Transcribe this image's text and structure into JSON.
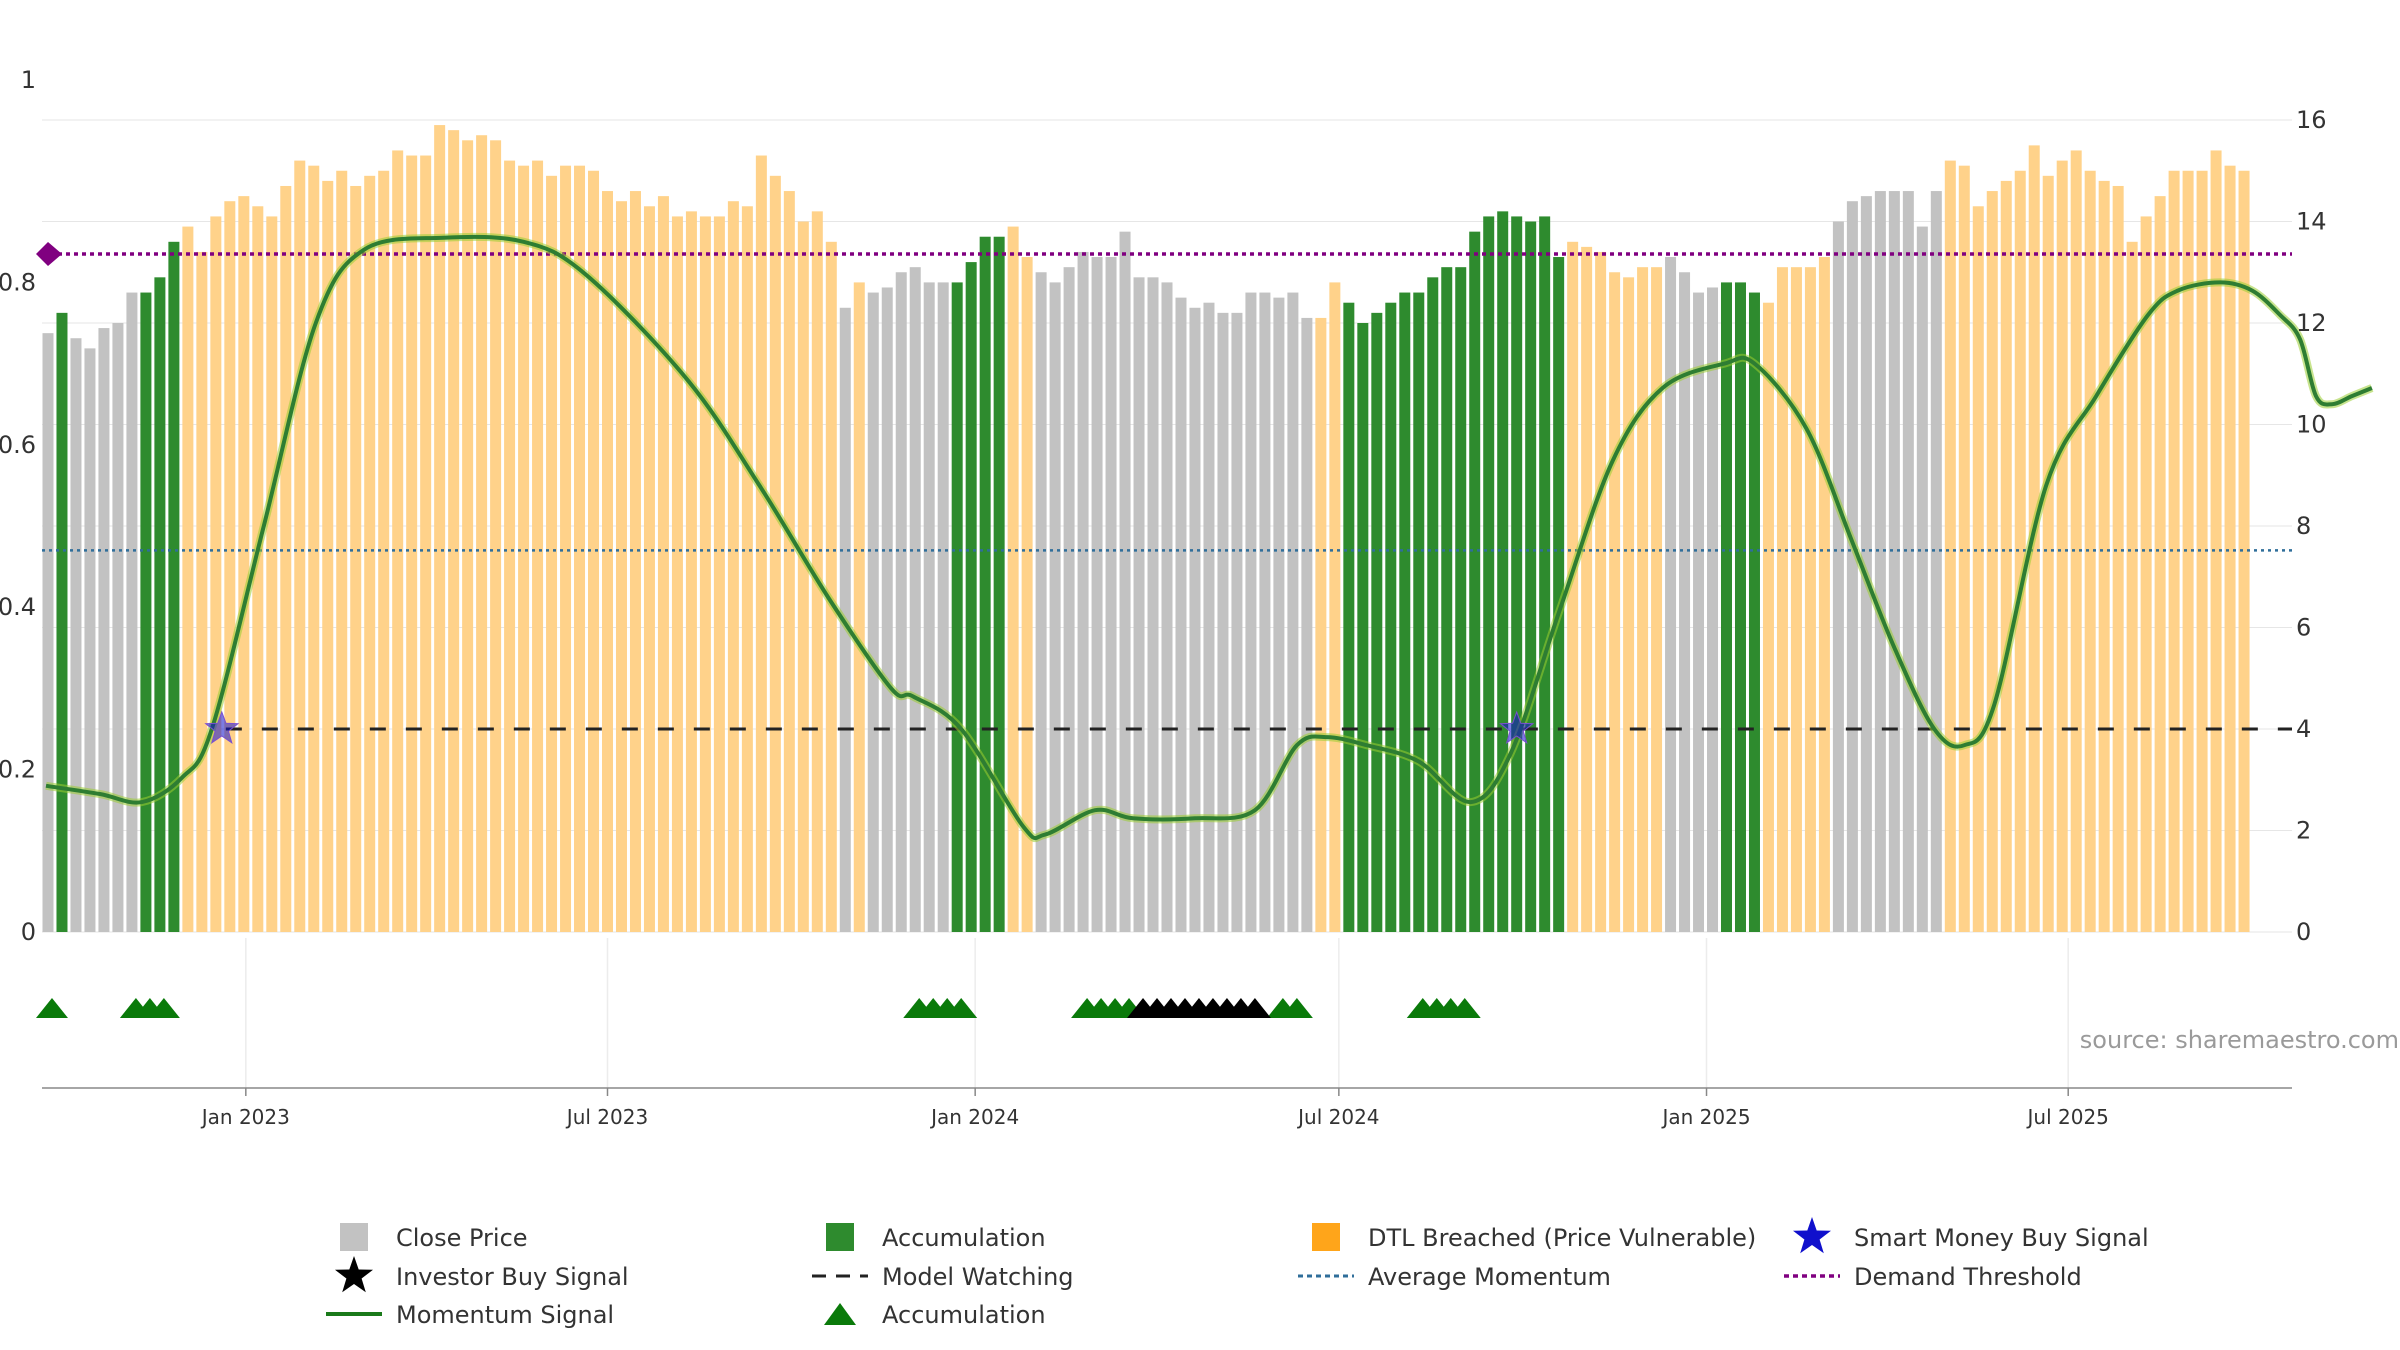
{
  "chart_data": {
    "type": "bar",
    "source": "source: sharemaestro.com",
    "left_axis": {
      "range": [
        0,
        1
      ],
      "ticks": [
        "0",
        "0.2",
        "0.4",
        "0.6",
        "0.8",
        "1"
      ]
    },
    "right_axis": {
      "range": [
        0,
        16
      ],
      "ticks": [
        "0",
        "2",
        "4",
        "6",
        "8",
        "10",
        "12",
        "14",
        "16"
      ]
    },
    "x_ticks": [
      "Jan 2023",
      "Jul 2023",
      "Jan 2024",
      "Jul 2024",
      "Jan 2025",
      "Jul 2025"
    ],
    "x_tick_dates": [
      "2023-01-01",
      "2023-07-01",
      "2024-01-01",
      "2024-07-01",
      "2025-01-01",
      "2025-07-01"
    ],
    "x_range": [
      "2022-09-21",
      "2025-10-21"
    ],
    "bar_start_date": "2022-09-24",
    "bar_interval_days": 7,
    "close_price": [
      11.8,
      12.2,
      11.7,
      11.5,
      11.9,
      12.0,
      12.6,
      12.6,
      12.9,
      13.6,
      13.9,
      13.4,
      14.1,
      14.4,
      14.5,
      14.3,
      14.1,
      14.7,
      15.2,
      15.1,
      14.8,
      15.0,
      14.7,
      14.9,
      15.0,
      15.4,
      15.3,
      15.3,
      15.9,
      15.8,
      15.6,
      15.7,
      15.6,
      15.2,
      15.1,
      15.2,
      14.9,
      15.1,
      15.1,
      15.0,
      14.6,
      14.4,
      14.6,
      14.3,
      14.5,
      14.1,
      14.2,
      14.1,
      14.1,
      14.4,
      14.3,
      15.3,
      14.9,
      14.6,
      14.0,
      14.2,
      13.6,
      12.3,
      12.8,
      12.6,
      12.7,
      13.0,
      13.1,
      12.8,
      12.8,
      12.8,
      13.2,
      13.7,
      13.7,
      13.9,
      13.3,
      13.0,
      12.8,
      13.1,
      13.4,
      13.3,
      13.3,
      13.8,
      12.9,
      12.9,
      12.8,
      12.5,
      12.3,
      12.4,
      12.2,
      12.2,
      12.6,
      12.6,
      12.5,
      12.6,
      12.1,
      12.1,
      12.8,
      12.4,
      12.0,
      12.2,
      12.4,
      12.6,
      12.6,
      12.9,
      13.1,
      13.1,
      13.8,
      14.1,
      14.2,
      14.1,
      14.0,
      14.1,
      13.3,
      13.6,
      13.5,
      13.4,
      13.0,
      12.9,
      13.1,
      13.1,
      13.3,
      13.0,
      12.6,
      12.7,
      12.8,
      12.8,
      12.6,
      12.4,
      13.1,
      13.1,
      13.1,
      13.3,
      14.0,
      14.4,
      14.5,
      14.6,
      14.6,
      14.6,
      13.9,
      14.6,
      15.2,
      15.1,
      14.3,
      14.6,
      14.8,
      15.0,
      15.5,
      14.9,
      15.2,
      15.4,
      15.0,
      14.8,
      14.7,
      13.6,
      14.1,
      14.5,
      15.0,
      15.0,
      15.0,
      15.4,
      15.1,
      15.0
    ],
    "bar_state": [
      "G",
      "A",
      "G",
      "G",
      "G",
      "G",
      "G",
      "A",
      "A",
      "A",
      "O",
      "O",
      "O",
      "O",
      "O",
      "O",
      "O",
      "O",
      "O",
      "O",
      "O",
      "O",
      "O",
      "O",
      "O",
      "O",
      "O",
      "O",
      "O",
      "O",
      "O",
      "O",
      "O",
      "O",
      "O",
      "O",
      "O",
      "O",
      "O",
      "O",
      "O",
      "O",
      "O",
      "O",
      "O",
      "O",
      "O",
      "O",
      "O",
      "O",
      "O",
      "O",
      "O",
      "O",
      "O",
      "O",
      "O",
      "G",
      "O",
      "G",
      "G",
      "G",
      "G",
      "G",
      "G",
      "A",
      "A",
      "A",
      "A",
      "O",
      "O",
      "G",
      "G",
      "G",
      "G",
      "G",
      "G",
      "G",
      "G",
      "G",
      "G",
      "G",
      "G",
      "G",
      "G",
      "G",
      "G",
      "G",
      "G",
      "G",
      "G",
      "O",
      "O",
      "A",
      "A",
      "A",
      "A",
      "A",
      "A",
      "A",
      "A",
      "A",
      "A",
      "A",
      "A",
      "A",
      "A",
      "A",
      "A",
      "O",
      "O",
      "O",
      "O",
      "O",
      "O",
      "O",
      "G",
      "G",
      "G",
      "G",
      "A",
      "A",
      "A",
      "O",
      "O",
      "O",
      "O",
      "O",
      "G",
      "G",
      "G",
      "G",
      "G",
      "G",
      "G",
      "G",
      "O",
      "O",
      "O",
      "O",
      "O",
      "O",
      "O",
      "O",
      "O",
      "O",
      "O",
      "O",
      "O",
      "O",
      "O",
      "O",
      "O",
      "O",
      "O",
      "O",
      "O",
      "O",
      "O",
      "O",
      "G",
      "O",
      "O",
      "O",
      "O",
      "O",
      "O",
      "O"
    ],
    "momentum_signal": [
      [
        "2022-09-23",
        0.18
      ],
      [
        "2022-10-20",
        0.17
      ],
      [
        "2022-11-10",
        0.16
      ],
      [
        "2022-11-30",
        0.19
      ],
      [
        "2022-12-15",
        0.25
      ],
      [
        "2023-01-10",
        0.5
      ],
      [
        "2023-02-05",
        0.75
      ],
      [
        "2023-03-01",
        0.84
      ],
      [
        "2023-04-10",
        0.855
      ],
      [
        "2023-05-20",
        0.85
      ],
      [
        "2023-06-20",
        0.81
      ],
      [
        "2023-08-10",
        0.68
      ],
      [
        "2023-09-15",
        0.55
      ],
      [
        "2023-10-20",
        0.41
      ],
      [
        "2023-11-20",
        0.3
      ],
      [
        "2023-12-01",
        0.29
      ],
      [
        "2023-12-25",
        0.25
      ],
      [
        "2024-01-25",
        0.13
      ],
      [
        "2024-02-05",
        0.12
      ],
      [
        "2024-03-01",
        0.15
      ],
      [
        "2024-03-20",
        0.14
      ],
      [
        "2024-04-20",
        0.14
      ],
      [
        "2024-05-20",
        0.15
      ],
      [
        "2024-06-10",
        0.23
      ],
      [
        "2024-06-25",
        0.24
      ],
      [
        "2024-07-15",
        0.23
      ],
      [
        "2024-08-10",
        0.21
      ],
      [
        "2024-09-05",
        0.16
      ],
      [
        "2024-09-25",
        0.22
      ],
      [
        "2024-10-20",
        0.4
      ],
      [
        "2024-11-15",
        0.58
      ],
      [
        "2024-12-10",
        0.67
      ],
      [
        "2025-01-10",
        0.7
      ],
      [
        "2025-01-25",
        0.7
      ],
      [
        "2025-02-20",
        0.62
      ],
      [
        "2025-03-15",
        0.48
      ],
      [
        "2025-04-05",
        0.35
      ],
      [
        "2025-04-25",
        0.25
      ],
      [
        "2025-05-10",
        0.23
      ],
      [
        "2025-05-25",
        0.28
      ],
      [
        "2025-06-20",
        0.55
      ],
      [
        "2025-07-15",
        0.66
      ],
      [
        "2025-08-10",
        0.76
      ],
      [
        "2025-08-25",
        0.79
      ],
      [
        "2025-09-15",
        0.8
      ],
      [
        "2025-10-01",
        0.79
      ],
      [
        "2025-10-15",
        0.76
      ],
      [
        "2025-10-25",
        0.73
      ],
      [
        "2025-11-02",
        0.66
      ],
      [
        "2025-11-10",
        0.65
      ],
      [
        "2025-11-20",
        0.66
      ],
      [
        "2025-11-30",
        0.67
      ]
    ],
    "model_watching_level": 0.25,
    "average_momentum_level": 0.47,
    "demand_threshold_level": 0.835,
    "smart_money_buy_signals": [
      [
        "2022-12-20",
        0.25
      ],
      [
        "2024-09-28",
        0.25
      ]
    ],
    "accumulation_markers": [
      "2022-09-26",
      "2022-11-07",
      "2022-11-14",
      "2022-11-21",
      "2023-12-04",
      "2023-12-11",
      "2023-12-18",
      "2023-12-25",
      "2024-02-26",
      "2024-03-04",
      "2024-03-11",
      "2024-03-18",
      "2024-06-03",
      "2024-06-10",
      "2024-08-12",
      "2024-08-19",
      "2024-08-26",
      "2024-09-02"
    ],
    "investor_buy_markers": [
      "2024-03-25",
      "2024-04-01",
      "2024-04-08",
      "2024-04-15",
      "2024-04-22",
      "2024-04-29",
      "2024-05-06",
      "2024-05-13",
      "2024-05-20"
    ],
    "legend": [
      {
        "key": "close",
        "label": "Close Price"
      },
      {
        "key": "accum-bar",
        "label": "Accumulation"
      },
      {
        "key": "dtl",
        "label": "DTL Breached (Price Vulnerable)"
      },
      {
        "key": "smart-money",
        "label": "Smart Money Buy Signal"
      },
      {
        "key": "investor",
        "label": "Investor Buy Signal"
      },
      {
        "key": "watching",
        "label": "Model Watching"
      },
      {
        "key": "avg-momentum",
        "label": "Average Momentum"
      },
      {
        "key": "demand",
        "label": "Demand Threshold"
      },
      {
        "key": "momentum",
        "label": "Momentum Signal"
      },
      {
        "key": "accum-marker",
        "label": "Accumulation"
      }
    ],
    "colors": {
      "close": "#c2c2c2",
      "accumulation": "#2e8b2e",
      "dtl": "#ffd28a",
      "momentum": "#2e7d32",
      "momentum_glow": "#9acd32",
      "watching": "#222222",
      "average_momentum": "#2f6e9a",
      "demand": "#800080",
      "smart_money": "#1010cc",
      "marker_green": "#0a7a0a",
      "marker_black": "#000000"
    }
  }
}
